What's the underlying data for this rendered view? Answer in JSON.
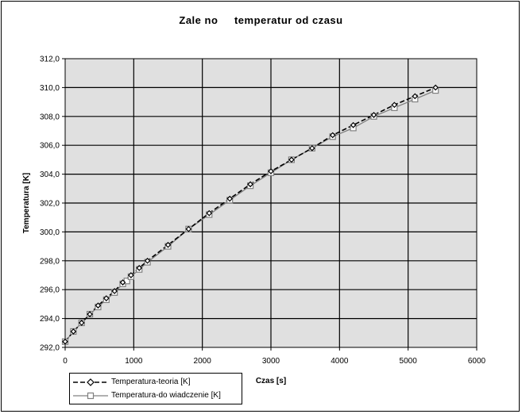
{
  "chart_data": {
    "type": "line",
    "title": "Zale no     temperatur od czasu",
    "xlabel": "Czas [s]",
    "ylabel": "Temperatura [K]",
    "xlim": [
      0,
      6000
    ],
    "ylim": [
      292.0,
      312.0
    ],
    "x_ticks": [
      "0",
      "1000",
      "2000",
      "3000",
      "4000",
      "5000",
      "6000"
    ],
    "y_ticks": [
      "292,0",
      "294,0",
      "296,0",
      "298,0",
      "300,0",
      "302,0",
      "304,0",
      "306,0",
      "308,0",
      "310,0",
      "312,0"
    ],
    "grid": true,
    "legend_position": "bottom-left",
    "series": [
      {
        "name": "Temperatura-teoria [K]",
        "style": "dashed",
        "marker": "diamond",
        "color": "#000000",
        "x": [
          0,
          120,
          240,
          360,
          480,
          600,
          720,
          840,
          960,
          1080,
          1200,
          1500,
          1800,
          2100,
          2400,
          2700,
          3000,
          3300,
          3600,
          3900,
          4200,
          4500,
          4800,
          5100,
          5400
        ],
        "y": [
          292.4,
          293.1,
          293.7,
          294.3,
          294.9,
          295.4,
          295.9,
          296.5,
          297.0,
          297.5,
          298.0,
          299.1,
          300.2,
          301.3,
          302.3,
          303.3,
          304.2,
          305.0,
          305.8,
          306.7,
          307.4,
          308.1,
          308.8,
          309.4,
          310.0
        ]
      },
      {
        "name": "Temperatura-do wiadczenie [K]",
        "style": "solid",
        "marker": "square",
        "color": "#808080",
        "x": [
          0,
          120,
          240,
          360,
          480,
          600,
          720,
          840,
          900,
          960,
          1080,
          1200,
          1500,
          1800,
          2100,
          2400,
          2700,
          3000,
          3300,
          3600,
          3900,
          4200,
          4500,
          4800,
          5100,
          5400
        ],
        "y": [
          292.4,
          293.1,
          293.7,
          294.3,
          294.8,
          295.3,
          295.8,
          296.4,
          296.6,
          296.9,
          297.4,
          297.9,
          299.0,
          300.2,
          301.2,
          302.2,
          303.2,
          304.1,
          305.0,
          305.8,
          306.6,
          307.2,
          308.0,
          308.6,
          309.2,
          309.8
        ]
      }
    ]
  }
}
